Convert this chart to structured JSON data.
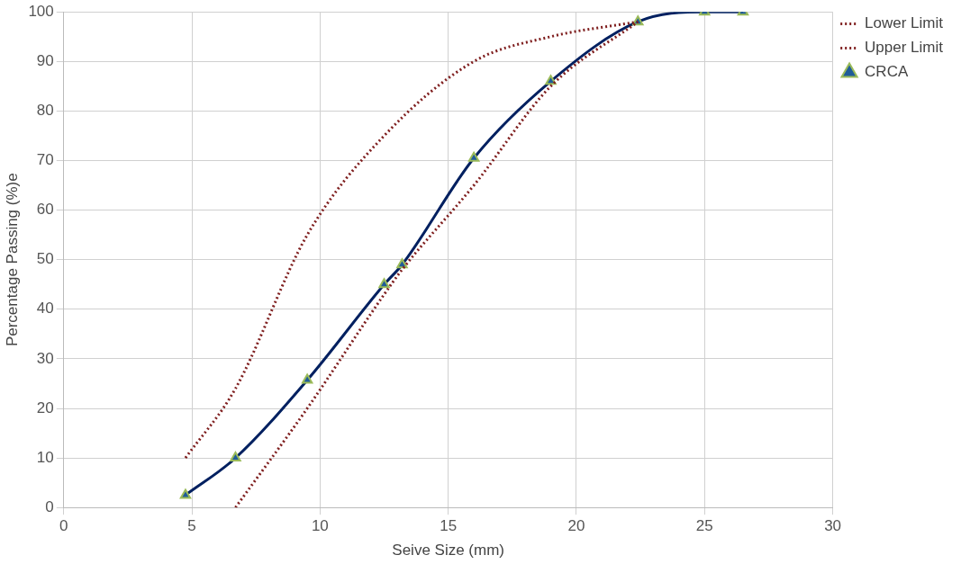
{
  "chart_data": {
    "type": "line",
    "xlabel": "Seive Size (mm)",
    "ylabel": "Percentage Passing (%)e",
    "xlim": [
      0,
      30
    ],
    "xticks": [
      0,
      5,
      10,
      15,
      20,
      25,
      30
    ],
    "ylim": [
      0,
      100
    ],
    "yticks": [
      0,
      10,
      20,
      30,
      40,
      50,
      60,
      70,
      80,
      90,
      100
    ],
    "grid": true,
    "legend": "right",
    "series": [
      {
        "name": "Lower Limit",
        "color": "#7f1f1f",
        "line_style": "dotted",
        "marker": "none",
        "x": [
          6.7,
          9.5,
          12.5,
          13.2,
          16,
          19,
          22.4
        ],
        "values": [
          0,
          20,
          43,
          48,
          65,
          85,
          98
        ]
      },
      {
        "name": "Upper Limit",
        "color": "#7f1f1f",
        "line_style": "dotted",
        "marker": "none",
        "x": [
          4.75,
          6.7,
          9.5,
          12.5,
          16,
          19,
          22.4
        ],
        "values": [
          10,
          24,
          55,
          75,
          90,
          95,
          98
        ]
      },
      {
        "name": "CRCA",
        "color": "#002060",
        "line_style": "solid",
        "marker": "triangle",
        "x": [
          4.75,
          6.7,
          9.5,
          12.5,
          13.2,
          16,
          19,
          22.4,
          25,
          26.5
        ],
        "values": [
          2.5,
          10,
          25.7,
          45,
          49,
          70.5,
          86,
          98,
          100,
          100
        ]
      }
    ]
  }
}
